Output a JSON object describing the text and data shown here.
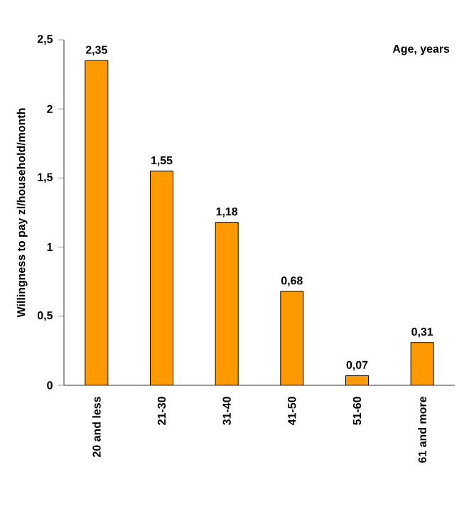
{
  "chart_data": {
    "type": "bar",
    "xlabel": "Age, years",
    "ylabel": "Willingness to pay zl/household/month",
    "categories": [
      "20 and less",
      "21-30",
      "31-40",
      "41-50",
      "51-60",
      "61 and more"
    ],
    "values": [
      2.35,
      1.55,
      1.18,
      0.68,
      0.07,
      0.31
    ],
    "value_labels": [
      "2,35",
      "1,55",
      "1,18",
      "0,68",
      "0,07",
      "0,31"
    ],
    "color": "#ff9900",
    "ylim": [
      0,
      2.5
    ],
    "yticks": [
      0,
      {
        "value": 0.5,
        "label": "0,5"
      },
      1,
      {
        "value": 1.5,
        "label": "1,5"
      },
      2,
      {
        "value": 2.5,
        "label": "2,5"
      }
    ],
    "tick_labels": "xy"
  }
}
